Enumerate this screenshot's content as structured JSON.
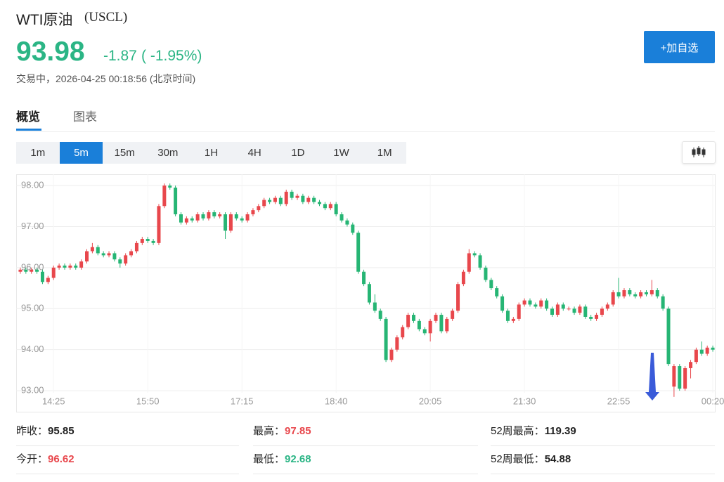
{
  "header": {
    "title": "WTI原油",
    "code": "(USCL)",
    "price": "93.98",
    "change": "-1.87",
    "change_percent": "( -1.95%)",
    "status": "交易中，",
    "time": "2026-04-25 00:18:56",
    "timezone": "(北京时间)",
    "button": "+加自选"
  },
  "tabs": [
    "概览",
    "图表"
  ],
  "periods": [
    "1m",
    "5m",
    "15m",
    "30m",
    "1H",
    "4H",
    "1D",
    "1W",
    "1M"
  ],
  "stats": [
    {
      "label": "昨收：",
      "value": "95.85"
    },
    {
      "label": "最高：",
      "value": "97.85"
    },
    {
      "label": "52周最高：",
      "value": "119.39"
    },
    {
      "label": "今开：",
      "value": "96.62"
    },
    {
      "label": "最低：",
      "value": "92.68"
    },
    {
      "label": "52周最低：",
      "value": "54.88"
    }
  ],
  "chart_data": {
    "type": "candlestick",
    "up_color": "#e8474c",
    "down_color": "#26b574",
    "grid": true,
    "ylim": [
      92.95,
      98.25
    ],
    "yticks": [
      {
        "value": 93,
        "label": "93.00"
      },
      {
        "value": 94,
        "label": "94.00"
      },
      {
        "value": 95,
        "label": "95.00"
      },
      {
        "value": 96,
        "label": "96.00"
      },
      {
        "value": 97,
        "label": "97.00"
      },
      {
        "value": 98,
        "label": "98.00"
      }
    ],
    "categories": [
      null,
      null,
      null,
      null,
      null,
      null,
      "14:25",
      null,
      null,
      null,
      null,
      null,
      null,
      null,
      null,
      null,
      null,
      null,
      null,
      null,
      null,
      null,
      null,
      "15:50",
      null,
      null,
      null,
      null,
      null,
      null,
      null,
      null,
      null,
      null,
      null,
      null,
      null,
      null,
      null,
      null,
      "17:15",
      null,
      null,
      null,
      null,
      null,
      null,
      null,
      null,
      null,
      null,
      null,
      null,
      null,
      null,
      null,
      null,
      "18:40",
      null,
      null,
      null,
      null,
      null,
      null,
      null,
      null,
      null,
      null,
      null,
      null,
      null,
      null,
      null,
      null,
      "20:05",
      null,
      null,
      null,
      null,
      null,
      null,
      null,
      null,
      null,
      null,
      null,
      null,
      null,
      null,
      null,
      null,
      "21:30",
      null,
      null,
      null,
      null,
      null,
      null,
      null,
      null,
      null,
      null,
      null,
      null,
      null,
      null,
      null,
      null,
      "22:55",
      null,
      null,
      null,
      null,
      null,
      null,
      null,
      null,
      null,
      null,
      null,
      null,
      null,
      null,
      null,
      null,
      "00:20"
    ],
    "candles": [
      [
        95.9,
        96.0,
        95.85,
        95.95
      ],
      [
        95.95,
        96.0,
        95.85,
        95.9
      ],
      [
        95.9,
        96.0,
        95.85,
        95.95
      ],
      [
        95.95,
        96.0,
        95.85,
        95.9
      ],
      [
        95.9,
        95.95,
        95.6,
        95.65
      ],
      [
        95.65,
        95.8,
        95.6,
        95.75
      ],
      [
        95.75,
        96.05,
        95.7,
        96.0
      ],
      [
        96.0,
        96.1,
        95.95,
        96.05
      ],
      [
        96.05,
        96.1,
        95.95,
        96.0
      ],
      [
        96.0,
        96.1,
        95.95,
        96.05
      ],
      [
        96.05,
        96.1,
        95.95,
        96.0
      ],
      [
        96.0,
        96.2,
        95.95,
        96.15
      ],
      [
        96.15,
        96.45,
        96.1,
        96.4
      ],
      [
        96.4,
        96.6,
        96.35,
        96.5
      ],
      [
        96.5,
        96.55,
        96.3,
        96.35
      ],
      [
        96.35,
        96.4,
        96.25,
        96.3
      ],
      [
        96.3,
        96.4,
        96.25,
        96.35
      ],
      [
        96.35,
        96.4,
        96.15,
        96.2
      ],
      [
        96.2,
        96.25,
        96.0,
        96.1
      ],
      [
        96.1,
        96.35,
        96.05,
        96.3
      ],
      [
        96.3,
        96.45,
        96.25,
        96.4
      ],
      [
        96.4,
        96.65,
        96.35,
        96.6
      ],
      [
        96.6,
        96.75,
        96.55,
        96.7
      ],
      [
        96.7,
        96.75,
        96.6,
        96.65
      ],
      [
        96.65,
        96.7,
        96.55,
        96.6
      ],
      [
        96.6,
        97.55,
        96.55,
        97.5
      ],
      [
        97.5,
        98.05,
        97.45,
        98.0
      ],
      [
        98.0,
        98.05,
        97.9,
        97.95
      ],
      [
        97.95,
        98.0,
        97.25,
        97.3
      ],
      [
        97.3,
        97.35,
        97.05,
        97.1
      ],
      [
        97.1,
        97.25,
        97.05,
        97.2
      ],
      [
        97.2,
        97.25,
        97.1,
        97.15
      ],
      [
        97.15,
        97.35,
        97.1,
        97.3
      ],
      [
        97.3,
        97.35,
        97.15,
        97.2
      ],
      [
        97.2,
        97.4,
        97.15,
        97.35
      ],
      [
        97.35,
        97.4,
        97.2,
        97.25
      ],
      [
        97.25,
        97.35,
        97.2,
        97.3
      ],
      [
        97.3,
        97.35,
        96.7,
        96.9
      ],
      [
        96.9,
        97.35,
        96.85,
        97.3
      ],
      [
        97.3,
        97.35,
        97.15,
        97.2
      ],
      [
        97.2,
        97.25,
        97.1,
        97.15
      ],
      [
        97.15,
        97.35,
        97.1,
        97.3
      ],
      [
        97.3,
        97.45,
        97.25,
        97.4
      ],
      [
        97.4,
        97.55,
        97.35,
        97.5
      ],
      [
        97.5,
        97.7,
        97.45,
        97.65
      ],
      [
        97.65,
        97.7,
        97.55,
        97.6
      ],
      [
        97.6,
        97.75,
        97.55,
        97.7
      ],
      [
        97.7,
        97.75,
        97.5,
        97.55
      ],
      [
        97.55,
        97.9,
        97.5,
        97.85
      ],
      [
        97.85,
        97.9,
        97.65,
        97.7
      ],
      [
        97.7,
        97.8,
        97.65,
        97.75
      ],
      [
        97.75,
        97.8,
        97.55,
        97.6
      ],
      [
        97.6,
        97.75,
        97.55,
        97.7
      ],
      [
        97.7,
        97.75,
        97.55,
        97.6
      ],
      [
        97.6,
        97.65,
        97.5,
        97.55
      ],
      [
        97.55,
        97.6,
        97.4,
        97.45
      ],
      [
        97.45,
        97.6,
        97.4,
        97.55
      ],
      [
        97.55,
        97.6,
        97.25,
        97.3
      ],
      [
        97.3,
        97.35,
        97.1,
        97.15
      ],
      [
        97.15,
        97.2,
        97.0,
        97.05
      ],
      [
        97.05,
        97.1,
        96.8,
        96.85
      ],
      [
        96.85,
        96.9,
        95.85,
        95.9
      ],
      [
        95.9,
        95.95,
        95.55,
        95.6
      ],
      [
        95.6,
        95.65,
        95.1,
        95.15
      ],
      [
        95.15,
        95.35,
        94.9,
        94.95
      ],
      [
        94.95,
        95.0,
        94.7,
        94.75
      ],
      [
        94.75,
        94.8,
        93.7,
        93.75
      ],
      [
        93.75,
        94.05,
        93.7,
        94.0
      ],
      [
        94.0,
        94.35,
        93.95,
        94.3
      ],
      [
        94.3,
        94.6,
        94.25,
        94.55
      ],
      [
        94.55,
        94.9,
        94.5,
        94.85
      ],
      [
        94.85,
        94.9,
        94.65,
        94.7
      ],
      [
        94.7,
        94.75,
        94.45,
        94.5
      ],
      [
        94.5,
        94.55,
        94.35,
        94.4
      ],
      [
        94.4,
        94.75,
        94.2,
        94.7
      ],
      [
        94.7,
        94.9,
        94.65,
        94.85
      ],
      [
        94.85,
        94.9,
        94.4,
        94.45
      ],
      [
        94.45,
        94.8,
        94.4,
        94.75
      ],
      [
        94.75,
        95.0,
        94.7,
        94.95
      ],
      [
        94.95,
        95.65,
        94.9,
        95.6
      ],
      [
        95.6,
        95.95,
        95.55,
        95.9
      ],
      [
        95.9,
        96.45,
        95.85,
        96.35
      ],
      [
        96.35,
        96.4,
        96.25,
        96.3
      ],
      [
        96.3,
        96.35,
        95.95,
        96.0
      ],
      [
        96.0,
        96.05,
        95.65,
        95.7
      ],
      [
        95.7,
        95.75,
        95.45,
        95.5
      ],
      [
        95.5,
        95.55,
        95.25,
        95.3
      ],
      [
        95.3,
        95.35,
        94.9,
        94.95
      ],
      [
        94.95,
        95.0,
        94.65,
        94.7
      ],
      [
        94.7,
        94.8,
        94.65,
        94.75
      ],
      [
        94.75,
        95.15,
        94.7,
        95.1
      ],
      [
        95.1,
        95.25,
        95.05,
        95.2
      ],
      [
        95.2,
        95.25,
        95.05,
        95.1
      ],
      [
        95.1,
        95.15,
        95.0,
        95.05
      ],
      [
        95.05,
        95.25,
        95.0,
        95.2
      ],
      [
        95.2,
        95.25,
        94.95,
        95.0
      ],
      [
        95.0,
        95.05,
        94.8,
        94.85
      ],
      [
        94.85,
        95.15,
        94.8,
        95.1
      ],
      [
        95.1,
        95.15,
        94.95,
        95.0
      ],
      [
        95.0,
        95.05,
        94.95,
        95.0
      ],
      [
        95.0,
        95.05,
        94.85,
        94.9
      ],
      [
        94.9,
        95.1,
        94.85,
        95.05
      ],
      [
        95.05,
        95.1,
        94.75,
        94.8
      ],
      [
        94.8,
        94.85,
        94.7,
        94.75
      ],
      [
        94.75,
        94.9,
        94.7,
        94.85
      ],
      [
        94.85,
        95.05,
        94.8,
        95.0
      ],
      [
        95.0,
        95.15,
        94.95,
        95.1
      ],
      [
        95.1,
        95.45,
        95.05,
        95.4
      ],
      [
        95.4,
        95.75,
        95.25,
        95.3
      ],
      [
        95.3,
        95.5,
        95.25,
        95.45
      ],
      [
        95.45,
        95.5,
        95.3,
        95.35
      ],
      [
        95.35,
        95.4,
        95.25,
        95.3
      ],
      [
        95.3,
        95.45,
        95.25,
        95.4
      ],
      [
        95.4,
        95.45,
        95.3,
        95.35
      ],
      [
        95.35,
        95.7,
        95.3,
        95.45
      ],
      [
        95.45,
        95.5,
        95.25,
        95.3
      ],
      [
        95.3,
        95.35,
        94.95,
        95.0
      ],
      [
        95.0,
        95.05,
        93.6,
        93.65
      ],
      [
        93.1,
        93.65,
        92.85,
        93.6
      ],
      [
        93.6,
        93.65,
        93.0,
        93.05
      ],
      [
        93.05,
        93.6,
        93.0,
        93.55
      ],
      [
        93.55,
        93.75,
        93.3,
        93.7
      ],
      [
        93.7,
        94.05,
        93.65,
        94.0
      ],
      [
        94.0,
        94.2,
        93.85,
        93.9
      ],
      [
        93.9,
        94.1,
        93.85,
        94.05
      ],
      [
        94.05,
        94.1,
        93.95,
        94.0
      ]
    ]
  }
}
